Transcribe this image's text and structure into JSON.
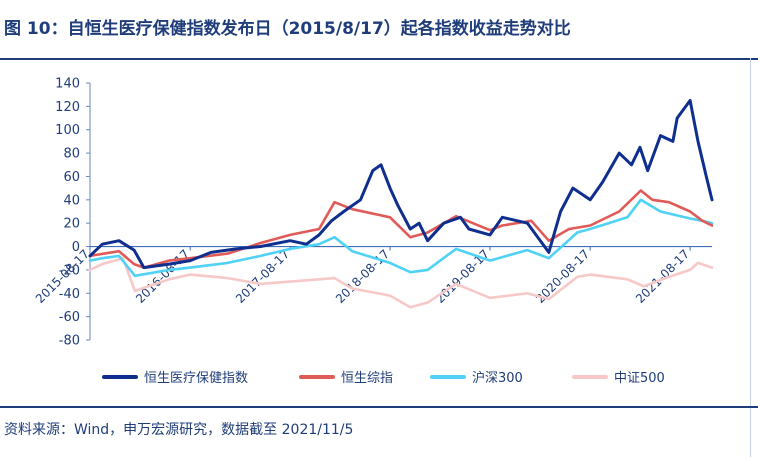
{
  "title": "图 10：自恒生医疗保健指数发布日（2015/8/17）起各指数收益走势对比",
  "source": "资料来源：Wind，申万宏源研究，数据截至 2021/11/5",
  "chart_data": {
    "type": "line",
    "title": "图 10：自恒生医疗保健指数发布日（2015/8/17）起各指数收益走势对比",
    "xlabel": "",
    "ylabel": "",
    "ylim": [
      -80,
      140
    ],
    "yticks": [
      140,
      120,
      100,
      80,
      60,
      40,
      20,
      0,
      -20,
      -40,
      -60,
      -80
    ],
    "x_range": [
      "2015-08-17",
      "2021-11-05"
    ],
    "xticks": [
      "2015-08-17",
      "2016-08-17",
      "2017-08-17",
      "2018-08-17",
      "2019-08-17",
      "2020-08-17",
      "2021-08-17"
    ],
    "grid": false,
    "legend": "bottom",
    "series": [
      {
        "name": "恒生医疗保健指数",
        "color": "#0f2f8f",
        "x": [
          "2015-08-17",
          "2015-10-01",
          "2015-12-01",
          "2016-01-25",
          "2016-03-01",
          "2016-06-01",
          "2016-08-17",
          "2016-11-01",
          "2017-02-01",
          "2017-05-01",
          "2017-08-17",
          "2017-10-15",
          "2017-12-01",
          "2018-01-15",
          "2018-03-01",
          "2018-05-01",
          "2018-06-15",
          "2018-07-15",
          "2018-08-17",
          "2018-09-15",
          "2018-10-30",
          "2018-12-01",
          "2019-01-01",
          "2019-03-01",
          "2019-05-01",
          "2019-06-01",
          "2019-08-17",
          "2019-10-01",
          "2020-01-01",
          "2020-03-19",
          "2020-05-01",
          "2020-06-15",
          "2020-08-17",
          "2020-10-01",
          "2020-12-01",
          "2021-01-15",
          "2021-02-15",
          "2021-03-15",
          "2021-05-01",
          "2021-06-15",
          "2021-07-01",
          "2021-08-17",
          "2021-09-15",
          "2021-10-15",
          "2021-11-05"
        ],
        "y": [
          -8,
          2,
          5,
          -3,
          -18,
          -15,
          -12,
          -5,
          -2,
          0,
          5,
          2,
          10,
          22,
          30,
          40,
          65,
          70,
          50,
          35,
          15,
          20,
          5,
          20,
          25,
          15,
          10,
          25,
          20,
          -5,
          30,
          50,
          40,
          55,
          80,
          70,
          85,
          65,
          95,
          90,
          110,
          125,
          90,
          60,
          40
        ]
      },
      {
        "name": "恒生综指",
        "color": "#e05a57",
        "x": [
          "2015-08-17",
          "2015-12-01",
          "2016-01-25",
          "2016-03-01",
          "2016-06-01",
          "2016-08-17",
          "2017-01-01",
          "2017-05-01",
          "2017-08-17",
          "2017-12-01",
          "2018-01-26",
          "2018-04-01",
          "2018-08-17",
          "2018-10-30",
          "2019-01-01",
          "2019-04-15",
          "2019-08-17",
          "2019-10-01",
          "2020-01-15",
          "2020-03-19",
          "2020-06-01",
          "2020-08-17",
          "2020-12-01",
          "2021-02-18",
          "2021-04-01",
          "2021-06-01",
          "2021-08-17",
          "2021-10-01",
          "2021-11-05"
        ],
        "y": [
          -8,
          -4,
          -15,
          -18,
          -12,
          -10,
          -6,
          3,
          10,
          15,
          38,
          32,
          25,
          8,
          12,
          26,
          14,
          18,
          22,
          5,
          15,
          18,
          30,
          48,
          40,
          38,
          30,
          22,
          18
        ]
      },
      {
        "name": "沪深300",
        "color": "#4fd2f5",
        "x": [
          "2015-08-17",
          "2015-10-01",
          "2015-12-01",
          "2016-01-28",
          "2016-06-01",
          "2016-08-17",
          "2017-01-01",
          "2017-05-01",
          "2017-08-17",
          "2017-12-01",
          "2018-01-26",
          "2018-04-01",
          "2018-08-17",
          "2018-10-30",
          "2019-01-01",
          "2019-04-15",
          "2019-08-17",
          "2019-12-31",
          "2020-03-19",
          "2020-07-01",
          "2020-08-17",
          "2020-12-31",
          "2021-02-18",
          "2021-05-01",
          "2021-08-17",
          "2021-10-01",
          "2021-11-05"
        ],
        "y": [
          -12,
          -10,
          -8,
          -25,
          -20,
          -18,
          -14,
          -8,
          -2,
          2,
          8,
          -4,
          -14,
          -22,
          -20,
          -2,
          -12,
          -3,
          -10,
          12,
          15,
          25,
          40,
          30,
          24,
          22,
          20
        ]
      },
      {
        "name": "中证500",
        "color": "#f7c8c8",
        "x": [
          "2015-08-17",
          "2015-10-01",
          "2015-12-15",
          "2016-01-28",
          "2016-06-01",
          "2016-08-17",
          "2017-01-01",
          "2017-05-01",
          "2017-08-17",
          "2017-12-01",
          "2018-01-26",
          "2018-04-01",
          "2018-08-17",
          "2018-10-30",
          "2019-01-01",
          "2019-04-15",
          "2019-08-17",
          "2019-12-31",
          "2020-03-19",
          "2020-07-01",
          "2020-08-17",
          "2020-12-31",
          "2021-03-01",
          "2021-06-01",
          "2021-08-17",
          "2021-09-15",
          "2021-11-05"
        ],
        "y": [
          -20,
          -15,
          -10,
          -38,
          -28,
          -24,
          -27,
          -32,
          -30,
          -28,
          -27,
          -36,
          -42,
          -52,
          -48,
          -32,
          -44,
          -40,
          -45,
          -26,
          -24,
          -28,
          -34,
          -26,
          -20,
          -14,
          -18
        ]
      }
    ]
  }
}
